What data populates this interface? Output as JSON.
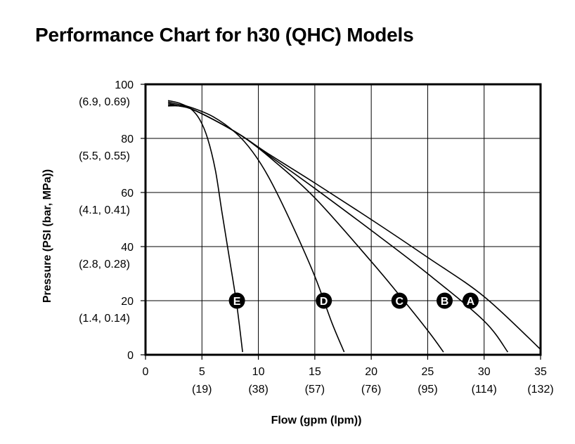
{
  "chart_data": {
    "type": "line",
    "title": "Performance Chart for h30 (QHC) Models",
    "xlabel": "Flow (gpm (lpm))",
    "ylabel": "Pressure (PSI (bar, MPa))",
    "xlim": [
      0,
      35
    ],
    "ylim": [
      0,
      100
    ],
    "grid": true,
    "x_ticks": [
      {
        "value": 0,
        "label": "0",
        "sub": ""
      },
      {
        "value": 5,
        "label": "5",
        "sub": "(19)"
      },
      {
        "value": 10,
        "label": "10",
        "sub": "(38)"
      },
      {
        "value": 15,
        "label": "15",
        "sub": "(57)"
      },
      {
        "value": 20,
        "label": "20",
        "sub": "(76)"
      },
      {
        "value": 25,
        "label": "25",
        "sub": "(95)"
      },
      {
        "value": 30,
        "label": "30",
        "sub": "(114)"
      },
      {
        "value": 35,
        "label": "35",
        "sub": "(132)"
      }
    ],
    "y_ticks": [
      {
        "value": 0,
        "label": "0",
        "sub": ""
      },
      {
        "value": 20,
        "label": "20",
        "sub": "(1.4, 0.14)"
      },
      {
        "value": 40,
        "label": "40",
        "sub": "(2.8, 0.28)"
      },
      {
        "value": 60,
        "label": "60",
        "sub": "(4.1, 0.41)"
      },
      {
        "value": 80,
        "label": "80",
        "sub": "(5.5, 0.55)"
      },
      {
        "value": 100,
        "label": "100",
        "sub": "(6.9, 0.69)"
      }
    ],
    "series": [
      {
        "name": "A",
        "label_at": [
          28.8,
          20
        ],
        "x": [
          2.0,
          3.0,
          4.0,
          6.0,
          8.5,
          11.0,
          15.0,
          20.0,
          25.0,
          30.0,
          35.0
        ],
        "y": [
          92,
          92,
          91,
          87,
          81,
          74,
          63.5,
          50,
          36,
          21.5,
          2
        ]
      },
      {
        "name": "B",
        "label_at": [
          26.5,
          20
        ],
        "x": [
          2.0,
          3.0,
          4.0,
          6.0,
          8.5,
          11.0,
          15.0,
          20.0,
          25.0,
          30.0,
          32.1
        ],
        "y": [
          92.5,
          92,
          91,
          87,
          81,
          73.5,
          61.5,
          46,
          30,
          12.5,
          1
        ]
      },
      {
        "name": "C",
        "label_at": [
          22.5,
          20
        ],
        "x": [
          2.0,
          3.0,
          4.0,
          6.0,
          8.5,
          11.0,
          15.0,
          20.0,
          22.5,
          25.0,
          26.4
        ],
        "y": [
          93,
          92,
          91,
          87,
          81,
          73,
          58,
          34.5,
          22,
          9,
          1
        ]
      },
      {
        "name": "D",
        "label_at": [
          15.8,
          20
        ],
        "x": [
          2.0,
          3.0,
          4.0,
          6.0,
          8.0,
          9.5,
          11.0,
          13.0,
          15.0,
          16.5,
          17.6
        ],
        "y": [
          93.5,
          92.5,
          91.5,
          88,
          82,
          75,
          65,
          48,
          29,
          12,
          1
        ]
      },
      {
        "name": "E",
        "label_at": [
          8.1,
          20
        ],
        "x": [
          2.0,
          3.0,
          4.0,
          4.8,
          5.5,
          6.2,
          6.8,
          7.5,
          8.1,
          8.6
        ],
        "y": [
          94,
          93,
          91,
          87,
          80,
          68,
          52,
          34,
          18,
          1
        ]
      }
    ]
  }
}
